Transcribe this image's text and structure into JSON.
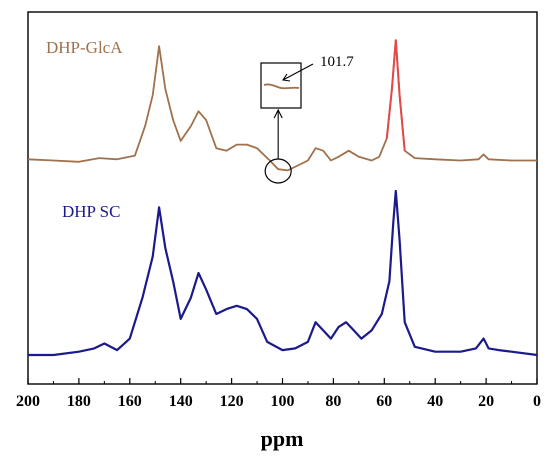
{
  "chart_data": {
    "type": "line",
    "title": "",
    "xlabel": "ppm",
    "ylabel": "",
    "x_reversed": true,
    "xlim": [
      0,
      200
    ],
    "xticks": [
      200,
      180,
      160,
      140,
      120,
      100,
      80,
      60,
      40,
      20,
      0
    ],
    "grid": false,
    "series": [
      {
        "name": "DHP-GlcA",
        "color": "#a0714b",
        "peak_color": "#e04a4a",
        "points": [
          [
            200,
            0.03
          ],
          [
            190,
            0.02
          ],
          [
            180,
            0.01
          ],
          [
            172,
            0.04
          ],
          [
            165,
            0.03
          ],
          [
            158,
            0.06
          ],
          [
            154,
            0.3
          ],
          [
            151,
            0.55
          ],
          [
            148.5,
            0.95
          ],
          [
            146,
            0.6
          ],
          [
            143,
            0.35
          ],
          [
            140,
            0.18
          ],
          [
            136,
            0.3
          ],
          [
            133,
            0.42
          ],
          [
            130,
            0.35
          ],
          [
            126,
            0.12
          ],
          [
            122,
            0.1
          ],
          [
            118,
            0.15
          ],
          [
            114,
            0.15
          ],
          [
            110,
            0.12
          ],
          [
            105,
            0.02
          ],
          [
            101.7,
            -0.05
          ],
          [
            98,
            -0.06
          ],
          [
            94,
            -0.02
          ],
          [
            90,
            0.02
          ],
          [
            87,
            0.12
          ],
          [
            84,
            0.1
          ],
          [
            81,
            0.02
          ],
          [
            78,
            0.05
          ],
          [
            74,
            0.1
          ],
          [
            70,
            0.05
          ],
          [
            65,
            0.02
          ],
          [
            62,
            0.05
          ],
          [
            59,
            0.2
          ],
          [
            57,
            0.6
          ],
          [
            55.5,
            1.0
          ],
          [
            54,
            0.55
          ],
          [
            52,
            0.1
          ],
          [
            48,
            0.04
          ],
          [
            40,
            0.03
          ],
          [
            30,
            0.02
          ],
          [
            23,
            0.03
          ],
          [
            21,
            0.07
          ],
          [
            19,
            0.03
          ],
          [
            10,
            0.02
          ],
          [
            0,
            0.02
          ]
        ]
      },
      {
        "name": "DHP SC",
        "color": "#1a1a8c",
        "points": [
          [
            200,
            0.0
          ],
          [
            190,
            0.0
          ],
          [
            180,
            0.02
          ],
          [
            174,
            0.04
          ],
          [
            170,
            0.07
          ],
          [
            165,
            0.03
          ],
          [
            160,
            0.1
          ],
          [
            155,
            0.35
          ],
          [
            151,
            0.6
          ],
          [
            148.5,
            0.9
          ],
          [
            146,
            0.65
          ],
          [
            143,
            0.45
          ],
          [
            140,
            0.22
          ],
          [
            136,
            0.35
          ],
          [
            133,
            0.5
          ],
          [
            130,
            0.4
          ],
          [
            126,
            0.25
          ],
          [
            122,
            0.28
          ],
          [
            118,
            0.3
          ],
          [
            114,
            0.28
          ],
          [
            110,
            0.22
          ],
          [
            106,
            0.08
          ],
          [
            100,
            0.03
          ],
          [
            95,
            0.04
          ],
          [
            90,
            0.08
          ],
          [
            87,
            0.2
          ],
          [
            84,
            0.15
          ],
          [
            81,
            0.1
          ],
          [
            78,
            0.17
          ],
          [
            75,
            0.2
          ],
          [
            72,
            0.15
          ],
          [
            69,
            0.1
          ],
          [
            65,
            0.15
          ],
          [
            61,
            0.25
          ],
          [
            58,
            0.45
          ],
          [
            56.5,
            0.8
          ],
          [
            55.5,
            1.0
          ],
          [
            54,
            0.7
          ],
          [
            52,
            0.2
          ],
          [
            48,
            0.05
          ],
          [
            40,
            0.02
          ],
          [
            30,
            0.02
          ],
          [
            24,
            0.04
          ],
          [
            21,
            0.1
          ],
          [
            19,
            0.04
          ],
          [
            15,
            0.03
          ],
          [
            10,
            0.02
          ],
          [
            0,
            0.0
          ]
        ]
      }
    ],
    "annotation": {
      "text": "101.7",
      "x": 101.7
    }
  }
}
